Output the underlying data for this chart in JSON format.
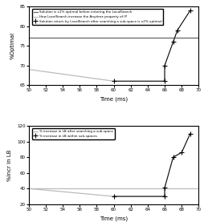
{
  "top": {
    "xlim": [
      50,
      70
    ],
    "ylim": [
      65,
      85
    ],
    "yticks": [
      65,
      70,
      75,
      80,
      85
    ],
    "xticks": [
      50,
      52,
      54,
      56,
      58,
      60,
      62,
      64,
      66,
      68,
      70
    ],
    "xlabel": "Time (ms)",
    "ylabel": "%Optimal",
    "hline_y": 77,
    "hline_color": "#666666",
    "hline_label": "Solution is x1% optimal before entering the LocalSearch",
    "scatter_x": [
      60,
      66,
      66,
      67,
      67.5,
      69
    ],
    "scatter_y": [
      66,
      66,
      70,
      76,
      79,
      84
    ],
    "scatter_label": "Solution return by LocalSearch after searching a sub-space is x2% optimal",
    "line_x": [
      50,
      60,
      66,
      66,
      67,
      67.5,
      69
    ],
    "line_y": [
      69,
      66,
      66,
      70,
      76,
      79,
      84
    ],
    "line_color": "#bbbbbb",
    "line_label": "How LocalSearch increase the Anytime property of IP"
  },
  "bottom": {
    "xlim": [
      50,
      70
    ],
    "ylim": [
      20,
      120
    ],
    "yticks": [
      20,
      40,
      60,
      80,
      100,
      120
    ],
    "xticks": [
      50,
      52,
      54,
      56,
      58,
      60,
      62,
      64,
      66,
      68,
      70
    ],
    "xlabel": "Time (ms)",
    "ylabel": "%incr in LB",
    "hline_y": 40,
    "hline_color": "#bbbbbb",
    "hline_label": "% increase in LB after searching a sub-space",
    "scatter_x": [
      60,
      66,
      66,
      67,
      68,
      69
    ],
    "scatter_y": [
      30,
      30,
      41,
      80,
      86,
      110
    ],
    "scatter_label": "% increase in LB within sub-spaces",
    "line_x": [
      50,
      60,
      66,
      66,
      67,
      68,
      69
    ],
    "line_y": [
      40,
      30,
      30,
      41,
      80,
      86,
      110
    ],
    "line_color": "#bbbbbb"
  }
}
